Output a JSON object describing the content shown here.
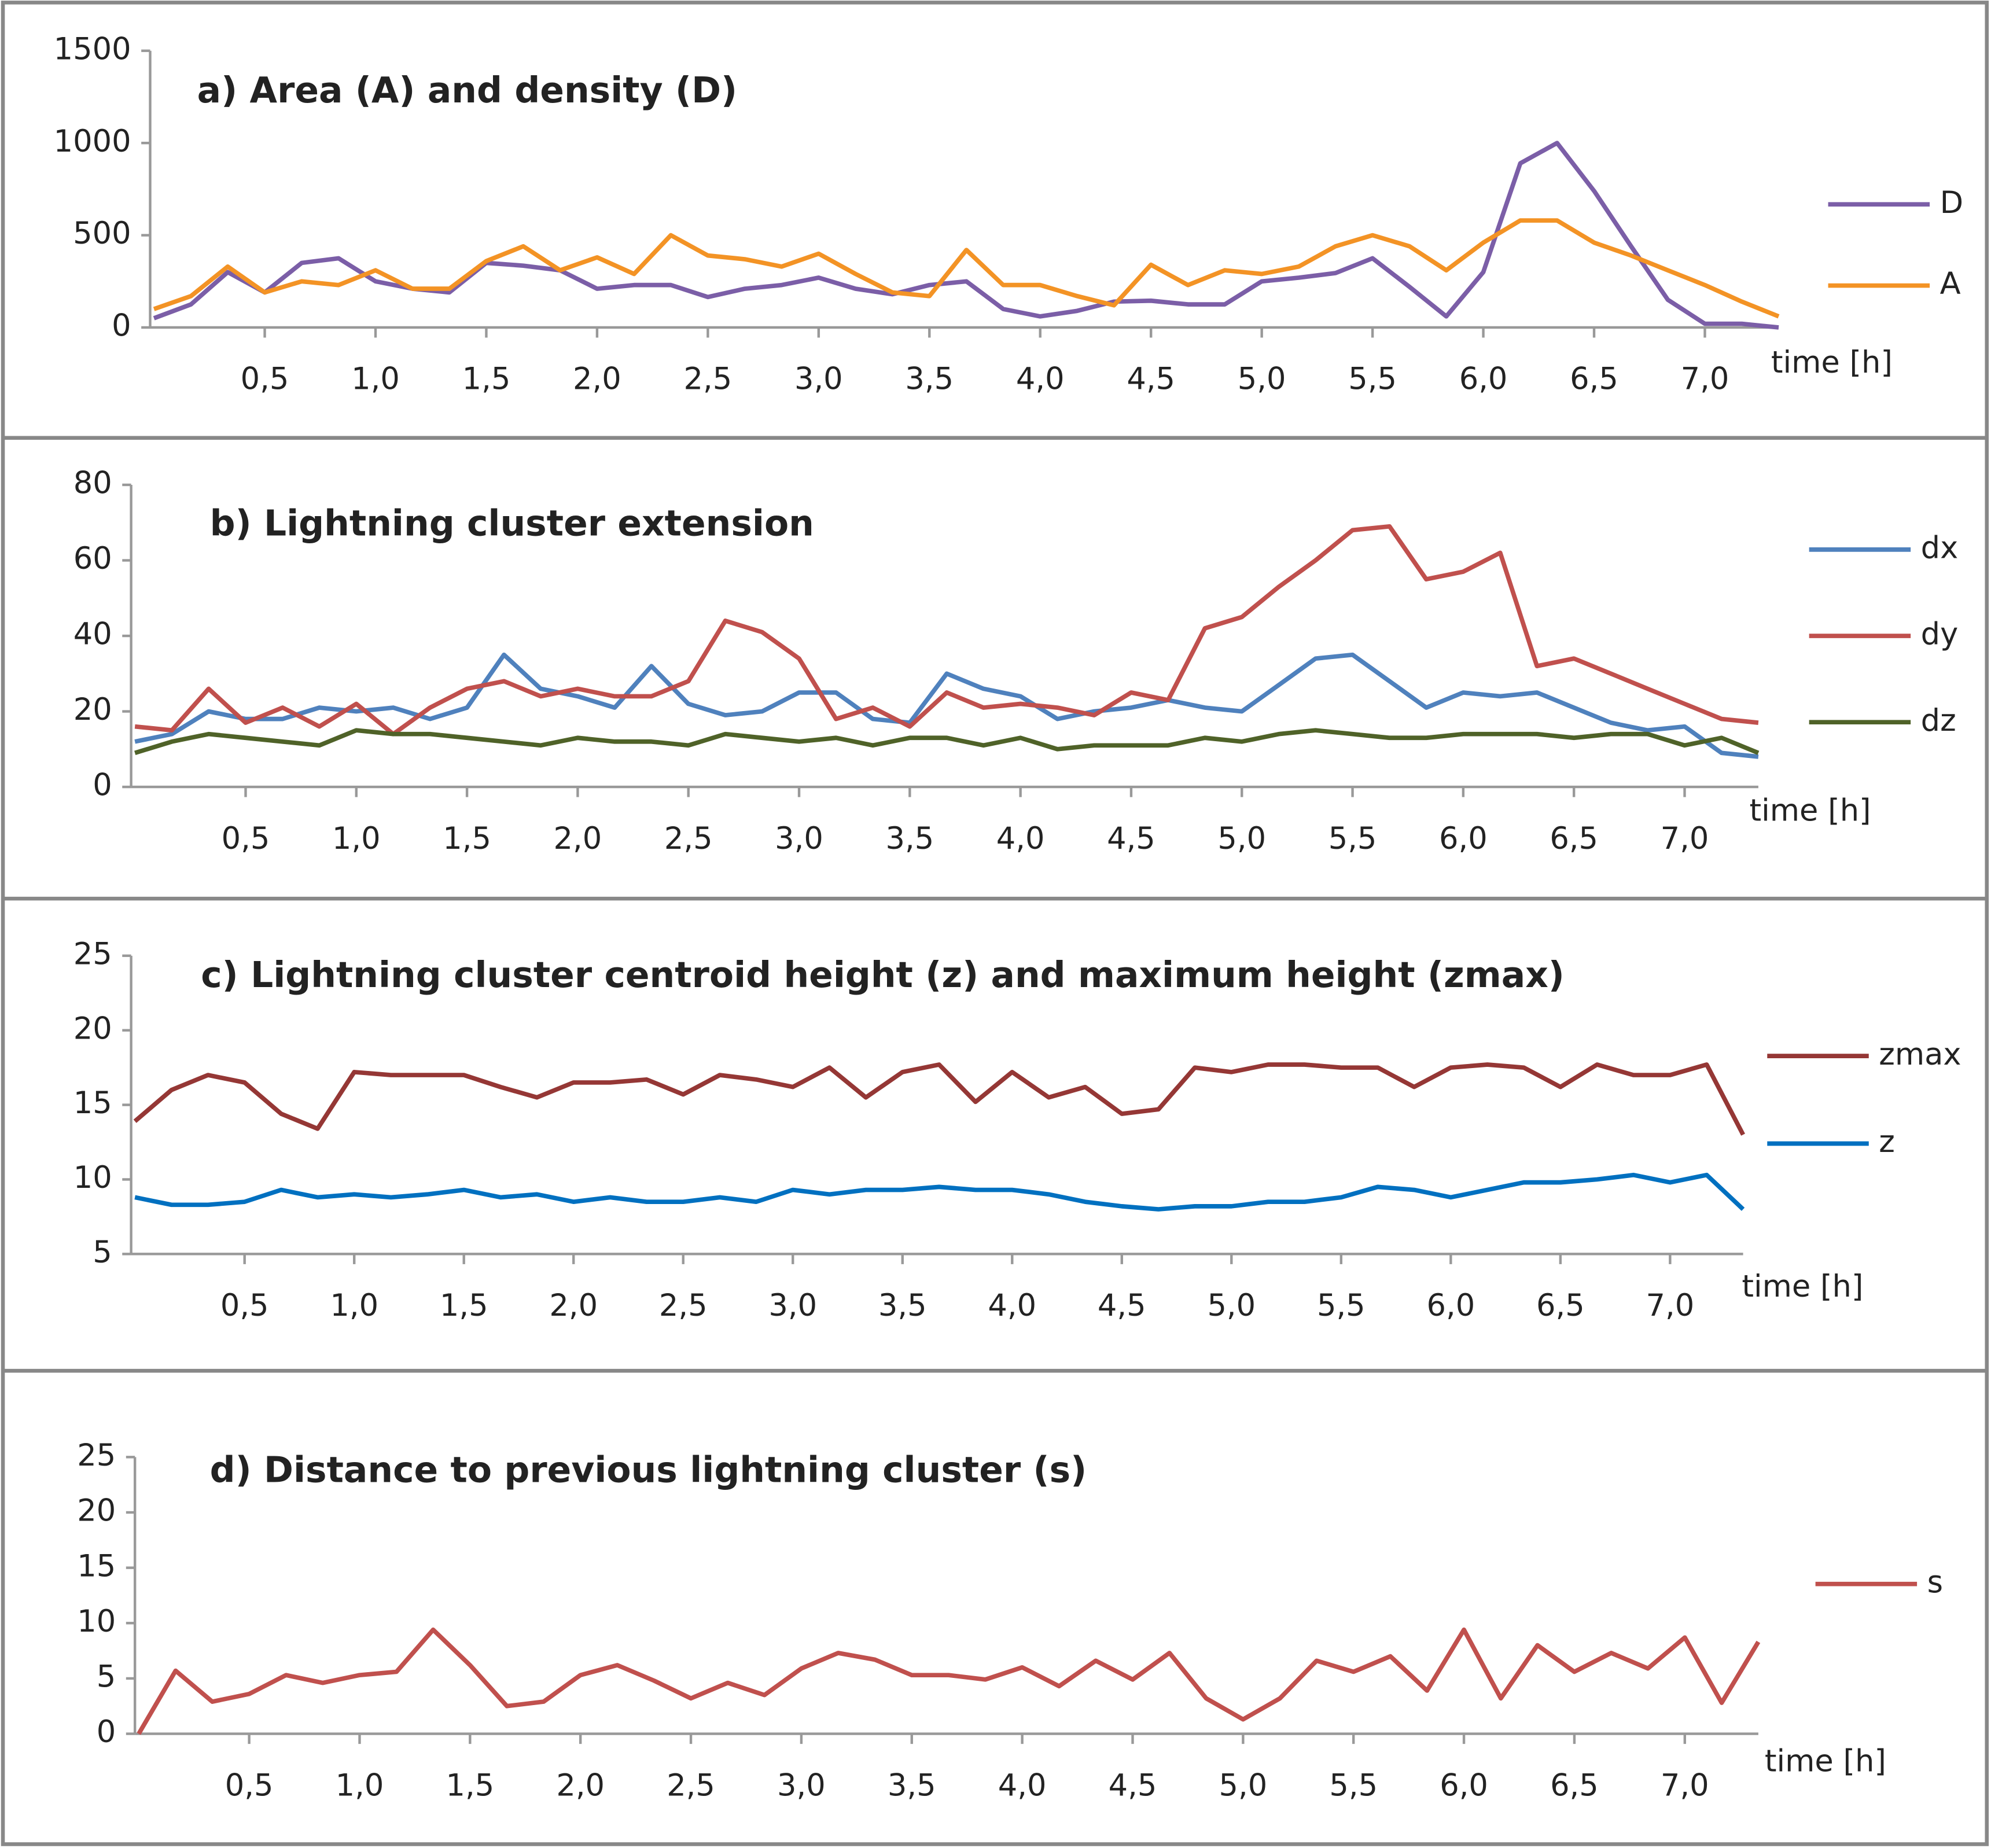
{
  "chart_data": [
    {
      "type": "line",
      "title": "a)  Area  (A) and density (D)",
      "x_label": "time [h]",
      "x": [
        0,
        0.167,
        0.333,
        0.5,
        0.667,
        0.833,
        1,
        1.167,
        1.333,
        1.5,
        1.667,
        1.833,
        2,
        2.167,
        2.333,
        2.5,
        2.667,
        2.833,
        3,
        3.167,
        3.333,
        3.5,
        3.667,
        3.833,
        4,
        4.167,
        4.333,
        4.5,
        4.667,
        4.833,
        5,
        5.167,
        5.333,
        5.5,
        5.667,
        5.833,
        6,
        6.167,
        6.333,
        6.5,
        6.667,
        6.833,
        7,
        7.167,
        7.333
      ],
      "xlim": [
        0,
        7.333
      ],
      "xticks": [
        {
          "value": 0.5,
          "label": "0,5"
        },
        {
          "value": 1,
          "label": "1,0"
        },
        {
          "value": 1.5,
          "label": "1,5"
        },
        {
          "value": 2,
          "label": "2,0"
        },
        {
          "value": 2.5,
          "label": "2,5"
        },
        {
          "value": 3,
          "label": "3,0"
        },
        {
          "value": 3.5,
          "label": "3,5"
        },
        {
          "value": 4,
          "label": "4,0"
        },
        {
          "value": 4.5,
          "label": "4,5"
        },
        {
          "value": 5,
          "label": "5,0"
        },
        {
          "value": 5.5,
          "label": "5,5"
        },
        {
          "value": 6,
          "label": "6,0"
        },
        {
          "value": 6.5,
          "label": "6,5"
        },
        {
          "value": 7,
          "label": "7,0"
        }
      ],
      "ylim": [
        0,
        1500
      ],
      "yticks": [
        0,
        500,
        1000,
        1500
      ],
      "series": [
        {
          "name": "D",
          "color": "#7b5ea7",
          "values": [
            50,
            125,
            300,
            190,
            350,
            375,
            250,
            210,
            190,
            350,
            335,
            310,
            210,
            230,
            230,
            165,
            210,
            230,
            270,
            210,
            180,
            230,
            250,
            100,
            60,
            90,
            140,
            145,
            125,
            125,
            250,
            270,
            295,
            375,
            220,
            60,
            300,
            890,
            1000,
            740,
            440,
            150,
            20,
            20,
            0
          ]
        },
        {
          "name": "A",
          "color": "#f39325",
          "values": [
            100,
            170,
            330,
            190,
            250,
            230,
            310,
            210,
            210,
            360,
            440,
            310,
            380,
            290,
            500,
            390,
            370,
            330,
            400,
            290,
            190,
            170,
            420,
            230,
            230,
            170,
            120,
            340,
            230,
            310,
            290,
            330,
            440,
            500,
            440,
            310,
            460,
            580,
            580,
            460,
            390,
            310,
            230,
            140,
            60
          ]
        }
      ]
    },
    {
      "type": "line",
      "title": "b)  Lightning cluster extension",
      "x_label": "time [h]",
      "x": [
        0,
        0.167,
        0.333,
        0.5,
        0.667,
        0.833,
        1,
        1.167,
        1.333,
        1.5,
        1.667,
        1.833,
        2,
        2.167,
        2.333,
        2.5,
        2.667,
        2.833,
        3,
        3.167,
        3.333,
        3.5,
        3.667,
        3.833,
        4,
        4.167,
        4.333,
        4.5,
        4.667,
        4.833,
        5,
        5.167,
        5.333,
        5.5,
        5.667,
        5.833,
        6,
        6.167,
        6.333,
        6.5,
        6.667,
        6.833,
        7,
        7.167,
        7.333
      ],
      "xlim": [
        0,
        7.333
      ],
      "xticks": [
        {
          "value": 0.5,
          "label": "0,5"
        },
        {
          "value": 1,
          "label": "1,0"
        },
        {
          "value": 1.5,
          "label": "1,5"
        },
        {
          "value": 2,
          "label": "2,0"
        },
        {
          "value": 2.5,
          "label": "2,5"
        },
        {
          "value": 3,
          "label": "3,0"
        },
        {
          "value": 3.5,
          "label": "3,5"
        },
        {
          "value": 4,
          "label": "4,0"
        },
        {
          "value": 4.5,
          "label": "4,5"
        },
        {
          "value": 5,
          "label": "5,0"
        },
        {
          "value": 5.5,
          "label": "5,5"
        },
        {
          "value": 6,
          "label": "6,0"
        },
        {
          "value": 6.5,
          "label": "6,5"
        },
        {
          "value": 7,
          "label": "7,0"
        }
      ],
      "ylim": [
        0,
        80
      ],
      "yticks": [
        0,
        20,
        40,
        60,
        80
      ],
      "series": [
        {
          "name": "dx",
          "color": "#4f81bd",
          "values": [
            12,
            14,
            20,
            18,
            18,
            21,
            20,
            21,
            18,
            21,
            35,
            26,
            24,
            21,
            32,
            22,
            19,
            20,
            25,
            25,
            18,
            17,
            30,
            26,
            24,
            18,
            20,
            21,
            23,
            21,
            20,
            27,
            34,
            35,
            28,
            21,
            25,
            24,
            25,
            21,
            17,
            15,
            16,
            9,
            8
          ]
        },
        {
          "name": "dy",
          "color": "#c0504d",
          "values": [
            16,
            15,
            26,
            17,
            21,
            16,
            22,
            14,
            21,
            26,
            28,
            24,
            26,
            24,
            24,
            28,
            44,
            41,
            34,
            18,
            21,
            16,
            25,
            21,
            22,
            21,
            19,
            25,
            23,
            42,
            45,
            53,
            60,
            68,
            69,
            55,
            57,
            62,
            32,
            34,
            30,
            26,
            22,
            18,
            17
          ]
        },
        {
          "name": "dz",
          "color": "#4f6228",
          "values": [
            9,
            12,
            14,
            13,
            12,
            11,
            15,
            14,
            14,
            13,
            12,
            11,
            13,
            12,
            12,
            11,
            14,
            13,
            12,
            13,
            11,
            13,
            13,
            11,
            13,
            10,
            11,
            11,
            11,
            13,
            12,
            14,
            15,
            14,
            13,
            13,
            14,
            14,
            14,
            13,
            14,
            14,
            11,
            13,
            9
          ]
        }
      ]
    },
    {
      "type": "line",
      "title": "c)  Lightning cluster centroid  height (z) and maximum height  (zmax)",
      "x_label": "time [h]",
      "x": [
        0,
        0.167,
        0.333,
        0.5,
        0.667,
        0.833,
        1,
        1.167,
        1.333,
        1.5,
        1.667,
        1.833,
        2,
        2.167,
        2.333,
        2.5,
        2.667,
        2.833,
        3,
        3.167,
        3.333,
        3.5,
        3.667,
        3.833,
        4,
        4.167,
        4.333,
        4.5,
        4.667,
        4.833,
        5,
        5.167,
        5.333,
        5.5,
        5.667,
        5.833,
        6,
        6.167,
        6.333,
        6.5,
        6.667,
        6.833,
        7,
        7.167,
        7.333
      ],
      "xlim": [
        0,
        7.333
      ],
      "xticks": [
        {
          "value": 0.5,
          "label": "0,5"
        },
        {
          "value": 1,
          "label": "1,0"
        },
        {
          "value": 1.5,
          "label": "1,5"
        },
        {
          "value": 2,
          "label": "2,0"
        },
        {
          "value": 2.5,
          "label": "2,5"
        },
        {
          "value": 3,
          "label": "3,0"
        },
        {
          "value": 3.5,
          "label": "3,5"
        },
        {
          "value": 4,
          "label": "4,0"
        },
        {
          "value": 4.5,
          "label": "4,5"
        },
        {
          "value": 5,
          "label": "5,0"
        },
        {
          "value": 5.5,
          "label": "5,5"
        },
        {
          "value": 6,
          "label": "6,0"
        },
        {
          "value": 6.5,
          "label": "6,5"
        },
        {
          "value": 7,
          "label": "7,0"
        }
      ],
      "ylim": [
        5,
        25
      ],
      "yticks": [
        5,
        10,
        15,
        20,
        25
      ],
      "series": [
        {
          "name": "zmax",
          "color": "#953735",
          "values": [
            13.9,
            16,
            17,
            16.5,
            14.4,
            13.4,
            17.2,
            17,
            17,
            17,
            16.2,
            15.5,
            16.5,
            16.5,
            16.7,
            15.7,
            17,
            16.7,
            16.2,
            17.5,
            15.5,
            17.2,
            17.7,
            15.2,
            17.2,
            15.5,
            16.2,
            14.4,
            14.7,
            17.5,
            17.2,
            17.7,
            17.7,
            17.5,
            17.5,
            16.2,
            17.5,
            17.7,
            17.5,
            16.2,
            17.7,
            17,
            17,
            17.7,
            13
          ]
        },
        {
          "name": "z",
          "color": "#0070c0",
          "values": [
            8.8,
            8.3,
            8.3,
            8.5,
            9.3,
            8.8,
            9,
            8.8,
            9,
            9.3,
            8.8,
            9,
            8.5,
            8.8,
            8.5,
            8.5,
            8.8,
            8.5,
            9.3,
            9,
            9.3,
            9.3,
            9.5,
            9.3,
            9.3,
            9,
            8.5,
            8.2,
            8,
            8.2,
            8.2,
            8.5,
            8.5,
            8.8,
            9.5,
            9.3,
            8.8,
            9.3,
            9.8,
            9.8,
            10,
            10.3,
            9.8,
            10.3,
            8
          ]
        }
      ]
    },
    {
      "type": "line",
      "title": "d)  Distance to previous lightning  cluster (s)",
      "x_label": "time [h]",
      "x": [
        0,
        0.167,
        0.333,
        0.5,
        0.667,
        0.833,
        1,
        1.167,
        1.333,
        1.5,
        1.667,
        1.833,
        2,
        2.167,
        2.333,
        2.5,
        2.667,
        2.833,
        3,
        3.167,
        3.333,
        3.5,
        3.667,
        3.833,
        4,
        4.167,
        4.333,
        4.5,
        4.667,
        4.833,
        5,
        5.167,
        5.333,
        5.5,
        5.667,
        5.833,
        6,
        6.167,
        6.333,
        6.5,
        6.667,
        6.833,
        7,
        7.167,
        7.333
      ],
      "xlim": [
        0,
        7.333
      ],
      "xticks": [
        {
          "value": 0.5,
          "label": "0,5"
        },
        {
          "value": 1,
          "label": "1,0"
        },
        {
          "value": 1.5,
          "label": "1,5"
        },
        {
          "value": 2,
          "label": "2,0"
        },
        {
          "value": 2.5,
          "label": "2,5"
        },
        {
          "value": 3,
          "label": "3,0"
        },
        {
          "value": 3.5,
          "label": "3,5"
        },
        {
          "value": 4,
          "label": "4,0"
        },
        {
          "value": 4.5,
          "label": "4,5"
        },
        {
          "value": 5,
          "label": "5,0"
        },
        {
          "value": 5.5,
          "label": "5,5"
        },
        {
          "value": 6,
          "label": "6,0"
        },
        {
          "value": 6.5,
          "label": "6,5"
        },
        {
          "value": 7,
          "label": "7,0"
        }
      ],
      "ylim": [
        0,
        25
      ],
      "yticks": [
        0,
        5,
        10,
        15,
        20,
        25
      ],
      "series": [
        {
          "name": "s",
          "color": "#c0504d",
          "values": [
            0,
            5.7,
            2.9,
            3.6,
            5.3,
            4.6,
            5.3,
            5.6,
            9.4,
            6.2,
            2.5,
            2.9,
            5.3,
            6.2,
            4.8,
            3.2,
            4.6,
            3.5,
            5.9,
            7.3,
            6.7,
            5.3,
            5.3,
            4.9,
            6,
            4.3,
            6.6,
            4.9,
            7.3,
            3.2,
            1.3,
            3.2,
            6.6,
            5.6,
            7,
            3.9,
            9.4,
            3.2,
            8,
            5.6,
            7.3,
            5.9,
            8.7,
            2.8,
            8.3
          ]
        }
      ]
    }
  ]
}
